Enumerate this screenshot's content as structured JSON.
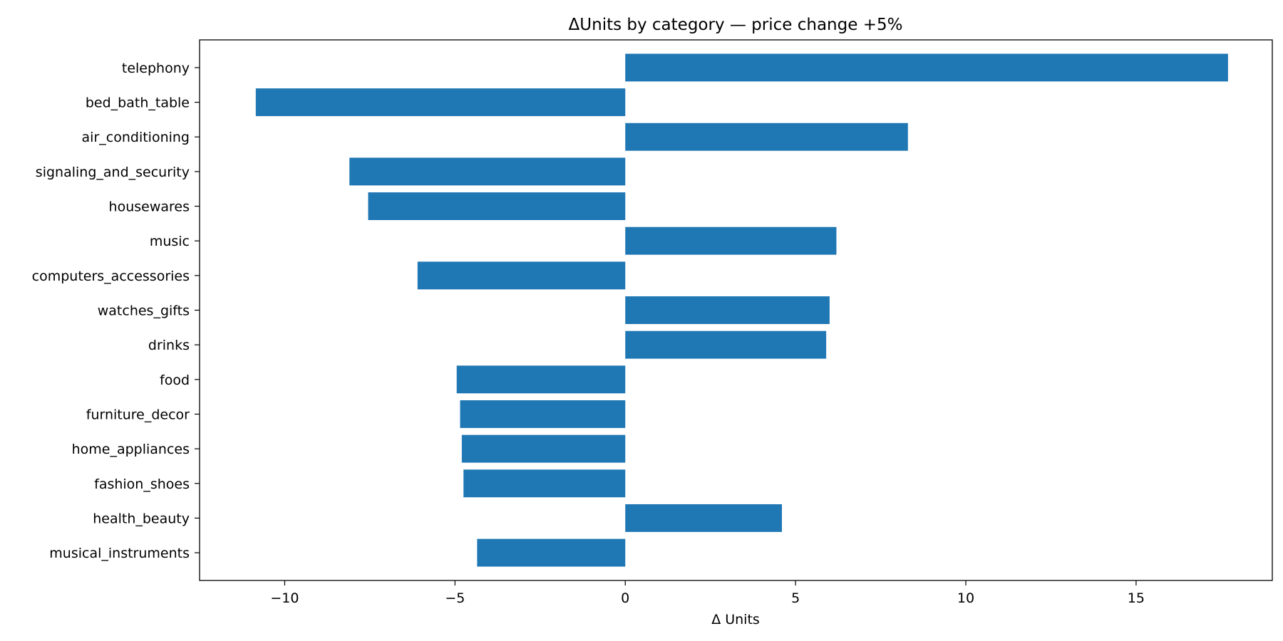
{
  "chart_data": {
    "type": "bar",
    "orientation": "horizontal",
    "title": "ΔUnits by category — price change +5%",
    "xlabel": "Δ Units",
    "ylabel": "",
    "xlim": [
      -12.5,
      19.0
    ],
    "xticks": [
      -10,
      -5,
      0,
      5,
      10,
      15
    ],
    "xtick_labels": [
      "−10",
      "−5",
      "0",
      "5",
      "10",
      "15"
    ],
    "categories": [
      "telephony",
      "bed_bath_table",
      "air_conditioning",
      "signaling_and_security",
      "housewares",
      "music",
      "computers_accessories",
      "watches_gifts",
      "drinks",
      "food",
      "furniture_decor",
      "home_appliances",
      "fashion_shoes",
      "health_beauty",
      "musical_instruments"
    ],
    "values": [
      17.7,
      -10.85,
      8.3,
      -8.1,
      -7.55,
      6.2,
      -6.1,
      6.0,
      5.9,
      -4.95,
      -4.85,
      -4.8,
      -4.75,
      4.6,
      -4.35
    ],
    "bar_color": "#1f77b4",
    "grid": false,
    "legend": "none"
  }
}
